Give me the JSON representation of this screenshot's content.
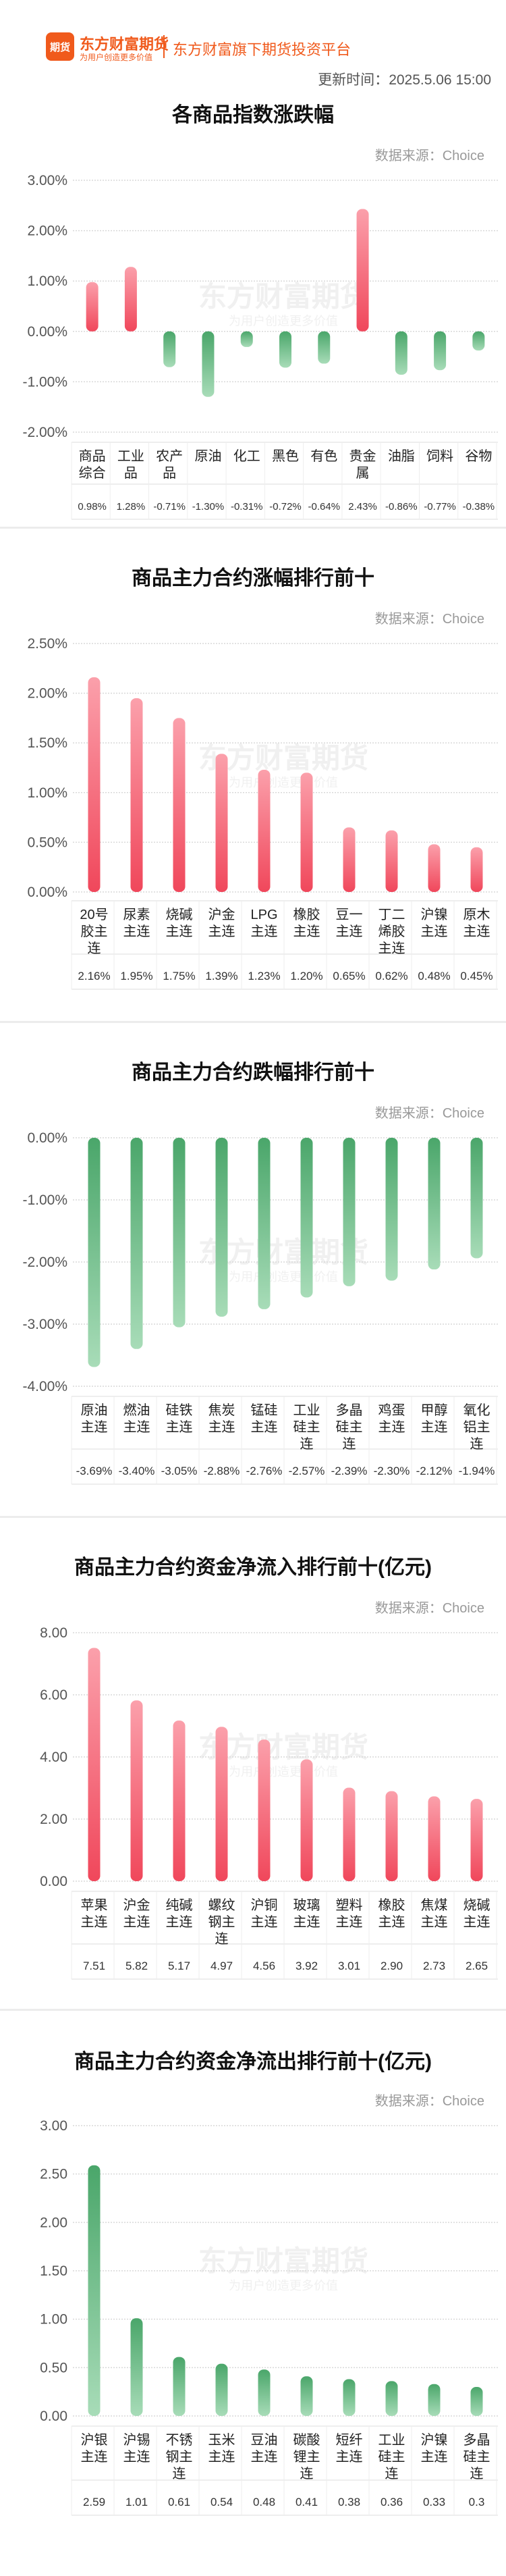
{
  "header": {
    "logo_mark": "期货",
    "logo_name": "东方财富期货",
    "logo_slogan": "为用户创造更多价值",
    "platform": "东方财富旗下期货投资平台",
    "update_label": "更新时间：",
    "update_time": "2025.5.06 15:00"
  },
  "watermark": {
    "text": "东方财富期货",
    "sub": "为用户创造更多价值"
  },
  "colors": {
    "up": "#f0475b",
    "up_light": "#fba0ab",
    "down": "#4aa66a",
    "down_light": "#a8dcb8",
    "axis_text": "#555555",
    "grid": "#d9d9d9"
  },
  "chart_data": [
    {
      "type": "bar",
      "title": "各商品指数涨跌幅",
      "source": "数据来源：Choice",
      "categories": [
        "商品\n综合",
        "工业\n品",
        "农产\n品",
        "原油",
        "化工",
        "黑色",
        "有色",
        "贵金\n属",
        "油脂",
        "饲料",
        "谷物"
      ],
      "values": [
        0.98,
        1.28,
        -0.71,
        -1.3,
        -0.31,
        -0.72,
        -0.64,
        2.43,
        -0.86,
        -0.77,
        -0.38
      ],
      "value_labels": [
        "0.98%",
        "1.28%",
        "-0.71%",
        "-1.30%",
        "-0.31%",
        "-0.72%",
        "-0.64%",
        "2.43%",
        "-0.86%",
        "-0.77%",
        "-0.38%"
      ],
      "yticks": [
        "3.00%",
        "2.00%",
        "1.00%",
        "0.00%",
        "-1.00%",
        "-2.00%"
      ],
      "ylim": [
        -2,
        3
      ],
      "unit": "%"
    },
    {
      "type": "bar",
      "title": "商品主力合约涨幅排行前十",
      "source": "数据来源：Choice",
      "categories": [
        "20号\n胶主\n连",
        "尿素\n主连",
        "烧碱\n主连",
        "沪金\n主连",
        "LPG\n主连",
        "橡胶\n主连",
        "豆一\n主连",
        "丁二\n烯胶\n主连",
        "沪镍\n主连",
        "原木\n主连"
      ],
      "values": [
        2.16,
        1.95,
        1.75,
        1.39,
        1.23,
        1.2,
        0.65,
        0.62,
        0.48,
        0.45
      ],
      "value_labels": [
        "2.16%",
        "1.95%",
        "1.75%",
        "1.39%",
        "1.23%",
        "1.20%",
        "0.65%",
        "0.62%",
        "0.48%",
        "0.45%"
      ],
      "yticks": [
        "2.50%",
        "2.00%",
        "1.50%",
        "1.00%",
        "0.50%",
        "0.00%"
      ],
      "ylim": [
        0,
        2.5
      ],
      "unit": "%"
    },
    {
      "type": "bar",
      "title": "商品主力合约跌幅排行前十",
      "source": "数据来源：Choice",
      "categories": [
        "原油\n主连",
        "燃油\n主连",
        "硅铁\n主连",
        "焦炭\n主连",
        "锰硅\n主连",
        "工业\n硅主\n连",
        "多晶\n硅主\n连",
        "鸡蛋\n主连",
        "甲醇\n主连",
        "氧化\n铝主\n连"
      ],
      "values": [
        -3.69,
        -3.4,
        -3.05,
        -2.88,
        -2.76,
        -2.57,
        -2.39,
        -2.3,
        -2.12,
        -1.94
      ],
      "value_labels": [
        "-3.69%",
        "-3.40%",
        "-3.05%",
        "-2.88%",
        "-2.76%",
        "-2.57%",
        "-2.39%",
        "-2.30%",
        "-2.12%",
        "-1.94%"
      ],
      "yticks": [
        "0.00%",
        "-1.00%",
        "-2.00%",
        "-3.00%",
        "-4.00%"
      ],
      "ylim": [
        -4,
        0
      ],
      "unit": "%"
    },
    {
      "type": "bar",
      "title": "商品主力合约资金净流入排行前十(亿元)",
      "source": "数据来源：Choice",
      "categories": [
        "苹果\n主连",
        "沪金\n主连",
        "纯碱\n主连",
        "螺纹\n钢主\n连",
        "沪铜\n主连",
        "玻璃\n主连",
        "塑料\n主连",
        "橡胶\n主连",
        "焦煤\n主连",
        "烧碱\n主连"
      ],
      "values": [
        7.51,
        5.82,
        5.17,
        4.97,
        4.56,
        3.92,
        3.01,
        2.9,
        2.73,
        2.65
      ],
      "value_labels": [
        "7.51",
        "5.82",
        "5.17",
        "4.97",
        "4.56",
        "3.92",
        "3.01",
        "2.90",
        "2.73",
        "2.65"
      ],
      "yticks": [
        "8.00",
        "6.00",
        "4.00",
        "2.00",
        "0.00"
      ],
      "ylim": [
        0,
        8
      ],
      "unit": "亿元"
    },
    {
      "type": "bar",
      "title": "商品主力合约资金净流出排行前十(亿元)",
      "source": "数据来源：Choice",
      "categories": [
        "沪银\n主连",
        "沪锡\n主连",
        "不锈\n钢主\n连",
        "玉米\n主连",
        "豆油\n主连",
        "碳酸\n锂主\n连",
        "短纤\n主连",
        "工业\n硅主\n连",
        "沪镍\n主连",
        "多晶\n硅主\n连"
      ],
      "values": [
        2.59,
        1.01,
        0.61,
        0.54,
        0.48,
        0.41,
        0.38,
        0.36,
        0.33,
        0.3
      ],
      "value_labels": [
        "2.59",
        "1.01",
        "0.61",
        "0.54",
        "0.48",
        "0.41",
        "0.38",
        "0.36",
        "0.33",
        "0.3"
      ],
      "yticks": [
        "3.00",
        "2.50",
        "2.00",
        "1.50",
        "1.00",
        "0.50",
        "0.00"
      ],
      "ylim": [
        0,
        3
      ],
      "unit": "亿元"
    }
  ]
}
